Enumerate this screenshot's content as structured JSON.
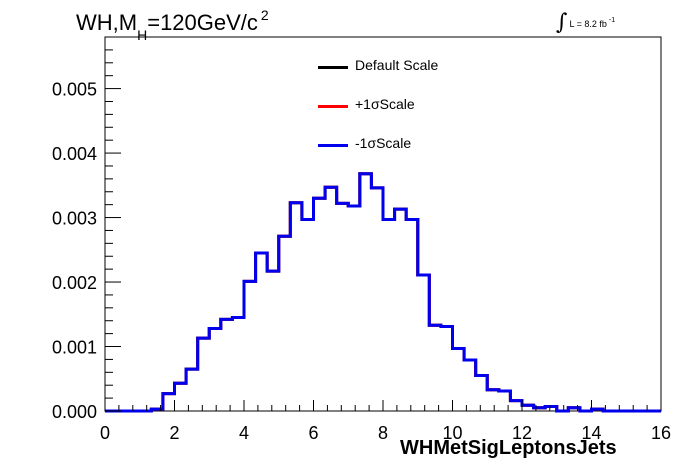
{
  "header": {
    "title_main": "WH,M",
    "title_sub": "H",
    "title_value": "=120GeV/c",
    "title_sup": "2",
    "lumi_symbol": "∫",
    "lumi_text": "L = 8.2 fb",
    "lumi_exp": "-1"
  },
  "chart_data": {
    "type": "line",
    "style": "step-histogram",
    "xlabel": "WHMetSigLeptonsJets",
    "ylabel": "",
    "xlim": [
      0,
      16
    ],
    "ylim": [
      0,
      0.0058
    ],
    "x_ticks": [
      "0",
      "2",
      "4",
      "6",
      "8",
      "10",
      "12",
      "14",
      "16"
    ],
    "y_ticks": [
      "0.000",
      "0.001",
      "0.002",
      "0.003",
      "0.004",
      "0.005"
    ],
    "x_tick_values": [
      0,
      2,
      4,
      6,
      8,
      10,
      12,
      14,
      16
    ],
    "y_tick_values": [
      0,
      0.001,
      0.002,
      0.003,
      0.004,
      0.005
    ],
    "bin_width": 0.333,
    "x": [
      0,
      0.333,
      0.667,
      1.0,
      1.333,
      1.667,
      2.0,
      2.333,
      2.667,
      3.0,
      3.333,
      3.667,
      4.0,
      4.333,
      4.667,
      5.0,
      5.333,
      5.667,
      6.0,
      6.333,
      6.667,
      7.0,
      7.333,
      7.667,
      8.0,
      8.333,
      8.667,
      9.0,
      9.333,
      9.667,
      10.0,
      10.333,
      10.667,
      11.0,
      11.333,
      11.667,
      12.0,
      12.333,
      12.667,
      13.0,
      13.333,
      13.667,
      14.0,
      14.333,
      14.667,
      15.0,
      15.333,
      15.667
    ],
    "series": [
      {
        "name": "Default Scale",
        "color": "#000000",
        "values": [
          0,
          0,
          0,
          0,
          3e-05,
          0.00027,
          0.00043,
          0.00065,
          0.00113,
          0.00128,
          0.00142,
          0.00145,
          0.00201,
          0.00245,
          0.00217,
          0.00271,
          0.00323,
          0.00297,
          0.0033,
          0.00347,
          0.00322,
          0.00318,
          0.00368,
          0.00346,
          0.00297,
          0.00313,
          0.00297,
          0.00211,
          0.00133,
          0.00131,
          0.00097,
          0.00079,
          0.00055,
          0.00033,
          0.00031,
          0.00016,
          9e-05,
          5e-05,
          7e-05,
          0,
          5e-05,
          0,
          3e-05,
          0,
          0,
          0,
          0,
          0
        ]
      },
      {
        "name": "+1σScale",
        "color": "#ff0000",
        "values": [
          0,
          0,
          0,
          0,
          3e-05,
          0.00027,
          0.00043,
          0.00065,
          0.00113,
          0.00128,
          0.00142,
          0.00145,
          0.00201,
          0.00245,
          0.00217,
          0.00271,
          0.00323,
          0.00297,
          0.0033,
          0.00347,
          0.00322,
          0.00318,
          0.00368,
          0.00346,
          0.00297,
          0.00313,
          0.00297,
          0.00211,
          0.00133,
          0.00131,
          0.00097,
          0.00079,
          0.00055,
          0.00033,
          0.00031,
          0.00016,
          9e-05,
          5e-05,
          7e-05,
          0,
          5e-05,
          0,
          3e-05,
          0,
          0,
          0,
          0,
          0
        ]
      },
      {
        "name": "-1σScale",
        "color": "#0000ee",
        "values": [
          0,
          0,
          0,
          0,
          3e-05,
          0.00027,
          0.00043,
          0.00065,
          0.00113,
          0.00128,
          0.00142,
          0.00145,
          0.00201,
          0.00245,
          0.00217,
          0.00271,
          0.00323,
          0.00297,
          0.0033,
          0.00347,
          0.00322,
          0.00318,
          0.00368,
          0.00346,
          0.00297,
          0.00313,
          0.00297,
          0.00211,
          0.00133,
          0.00131,
          0.00097,
          0.00079,
          0.00055,
          0.00033,
          0.00031,
          0.00016,
          9e-05,
          5e-05,
          7e-05,
          0,
          5e-05,
          0,
          3e-05,
          0,
          0,
          0,
          0,
          0
        ]
      }
    ],
    "legend": [
      "Default Scale",
      "+1σScale",
      "-1σScale"
    ],
    "legend_placement": "top-center",
    "grid": false
  }
}
